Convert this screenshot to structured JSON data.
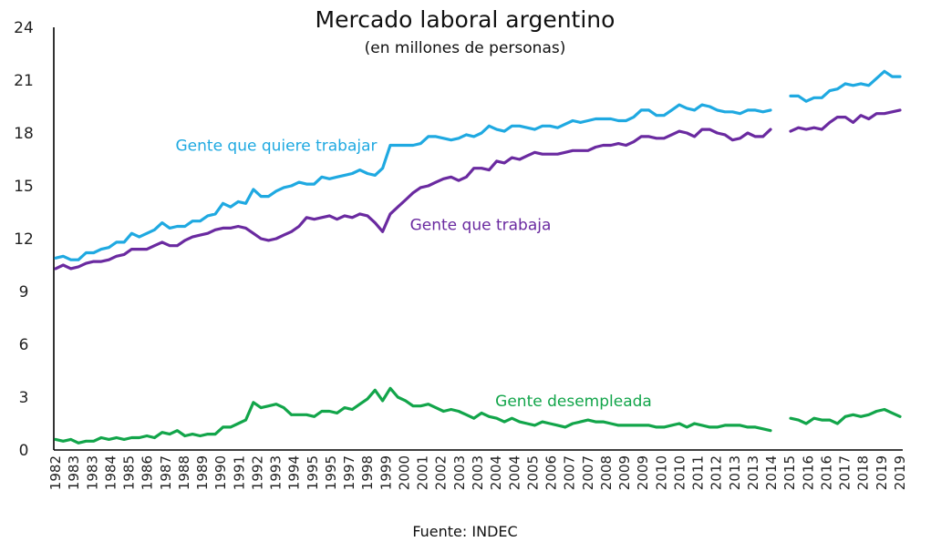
{
  "chart_data": {
    "type": "line",
    "title": "Mercado laboral argentino",
    "subtitle": "(en millones de personas)",
    "source": "Fuente: INDEC",
    "ylim": [
      0,
      24
    ],
    "yticks": [
      "0",
      "3",
      "6",
      "9",
      "12",
      "15",
      "18",
      "21",
      "24"
    ],
    "x_tick_labels": [
      "1982",
      "1983",
      "1983",
      "1984",
      "1985",
      "1986",
      "1987",
      "1988",
      "1989",
      "1990",
      "1991",
      "1992",
      "1993",
      "1994",
      "1995",
      "1995",
      "1997",
      "1998",
      "1999",
      "2000",
      "2001",
      "2002",
      "2003",
      "2003",
      "2004",
      "2004",
      "2005",
      "2006",
      "2007",
      "2007",
      "2008",
      "2009",
      "2009",
      "2010",
      "2010",
      "2011",
      "2012",
      "2013",
      "2013",
      "2014",
      "2015",
      "2016",
      "2016",
      "2017",
      "2018",
      "2019",
      "2019"
    ],
    "grid": false,
    "legend": "inline labels",
    "series": [
      {
        "name": "Gente que quiere trabajar",
        "color": "#1fa9e1",
        "label_value": 17.3,
        "segments": [
          [
            10.9,
            11.0,
            10.8,
            10.8,
            11.2,
            11.2,
            11.4,
            11.5,
            11.8,
            11.8,
            12.3,
            12.1,
            12.3,
            12.5,
            12.9,
            12.6,
            12.7,
            12.7,
            13.0,
            13.0,
            13.3,
            13.4,
            14.0,
            13.8,
            14.1,
            14.0,
            14.8,
            14.4,
            14.4,
            14.7,
            14.9,
            15.0,
            15.2,
            15.1,
            15.1,
            15.5,
            15.4,
            15.5,
            15.6,
            15.7,
            15.9,
            15.7,
            15.6,
            16.0,
            17.3,
            17.3,
            17.3,
            17.3,
            17.4,
            17.8,
            17.8,
            17.7,
            17.6,
            17.7,
            17.9,
            17.8,
            18.0,
            18.4,
            18.2,
            18.1,
            18.4,
            18.4,
            18.3,
            18.2,
            18.4,
            18.4,
            18.3,
            18.5,
            18.7,
            18.6,
            18.7,
            18.8,
            18.8,
            18.8,
            18.7,
            18.7,
            18.9,
            19.3,
            19.3,
            19.0,
            19.0,
            19.3,
            19.6,
            19.4,
            19.3,
            19.6,
            19.5,
            19.3,
            19.2,
            19.2,
            19.1,
            19.3,
            19.3,
            19.2,
            19.3
          ],
          [
            20.1,
            20.1,
            19.8,
            20.0,
            20.0,
            20.4,
            20.5,
            20.8,
            20.7,
            20.8,
            20.7,
            21.1,
            21.5,
            21.2,
            21.2
          ]
        ]
      },
      {
        "name": "Gente que trabaja",
        "color": "#6a2aa0",
        "label_value": 12.8,
        "segments": [
          [
            10.3,
            10.5,
            10.3,
            10.4,
            10.6,
            10.7,
            10.7,
            10.8,
            11.0,
            11.1,
            11.4,
            11.4,
            11.4,
            11.6,
            11.8,
            11.6,
            11.6,
            11.9,
            12.1,
            12.2,
            12.3,
            12.5,
            12.6,
            12.6,
            12.7,
            12.6,
            12.3,
            12.0,
            11.9,
            12.0,
            12.2,
            12.4,
            12.7,
            13.2,
            13.1,
            13.2,
            13.3,
            13.1,
            13.3,
            13.2,
            13.4,
            13.3,
            12.9,
            12.4,
            13.4,
            13.8,
            14.2,
            14.6,
            14.9,
            15.0,
            15.2,
            15.4,
            15.5,
            15.3,
            15.5,
            16.0,
            16.0,
            15.9,
            16.4,
            16.3,
            16.6,
            16.5,
            16.7,
            16.9,
            16.8,
            16.8,
            16.8,
            16.9,
            17.0,
            17.0,
            17.0,
            17.2,
            17.3,
            17.3,
            17.4,
            17.3,
            17.5,
            17.8,
            17.8,
            17.7,
            17.7,
            17.9,
            18.1,
            18.0,
            17.8,
            18.2,
            18.2,
            18.0,
            17.9,
            17.6,
            17.7,
            18.0,
            17.8,
            17.8,
            18.2
          ],
          [
            18.1,
            18.3,
            18.2,
            18.3,
            18.2,
            18.6,
            18.9,
            18.9,
            18.6,
            19.0,
            18.8,
            19.1,
            19.1,
            19.2,
            19.3
          ]
        ]
      },
      {
        "name": "Gente desempleada",
        "color": "#12a54a",
        "label_value": 2.8,
        "segments": [
          [
            0.6,
            0.5,
            0.6,
            0.4,
            0.5,
            0.5,
            0.7,
            0.6,
            0.7,
            0.6,
            0.7,
            0.7,
            0.8,
            0.7,
            1.0,
            0.9,
            1.1,
            0.8,
            0.9,
            0.8,
            0.9,
            0.9,
            1.3,
            1.3,
            1.5,
            1.7,
            2.7,
            2.4,
            2.5,
            2.6,
            2.4,
            2.0,
            2.0,
            2.0,
            1.9,
            2.2,
            2.2,
            2.1,
            2.4,
            2.3,
            2.6,
            2.9,
            3.4,
            2.8,
            3.5,
            3.0,
            2.8,
            2.5,
            2.5,
            2.6,
            2.4,
            2.2,
            2.3,
            2.2,
            2.0,
            1.8,
            2.1,
            1.9,
            1.8,
            1.6,
            1.8,
            1.6,
            1.5,
            1.4,
            1.6,
            1.5,
            1.4,
            1.3,
            1.5,
            1.6,
            1.7,
            1.6,
            1.6,
            1.5,
            1.4,
            1.4,
            1.4,
            1.4,
            1.4,
            1.3,
            1.3,
            1.4,
            1.5,
            1.3,
            1.5,
            1.4,
            1.3,
            1.3,
            1.4,
            1.4,
            1.4,
            1.3,
            1.3,
            1.2,
            1.1
          ],
          [
            1.8,
            1.7,
            1.5,
            1.8,
            1.7,
            1.7,
            1.5,
            1.9,
            2.0,
            1.9,
            2.0,
            2.2,
            2.3,
            2.1,
            1.9
          ]
        ]
      }
    ]
  }
}
